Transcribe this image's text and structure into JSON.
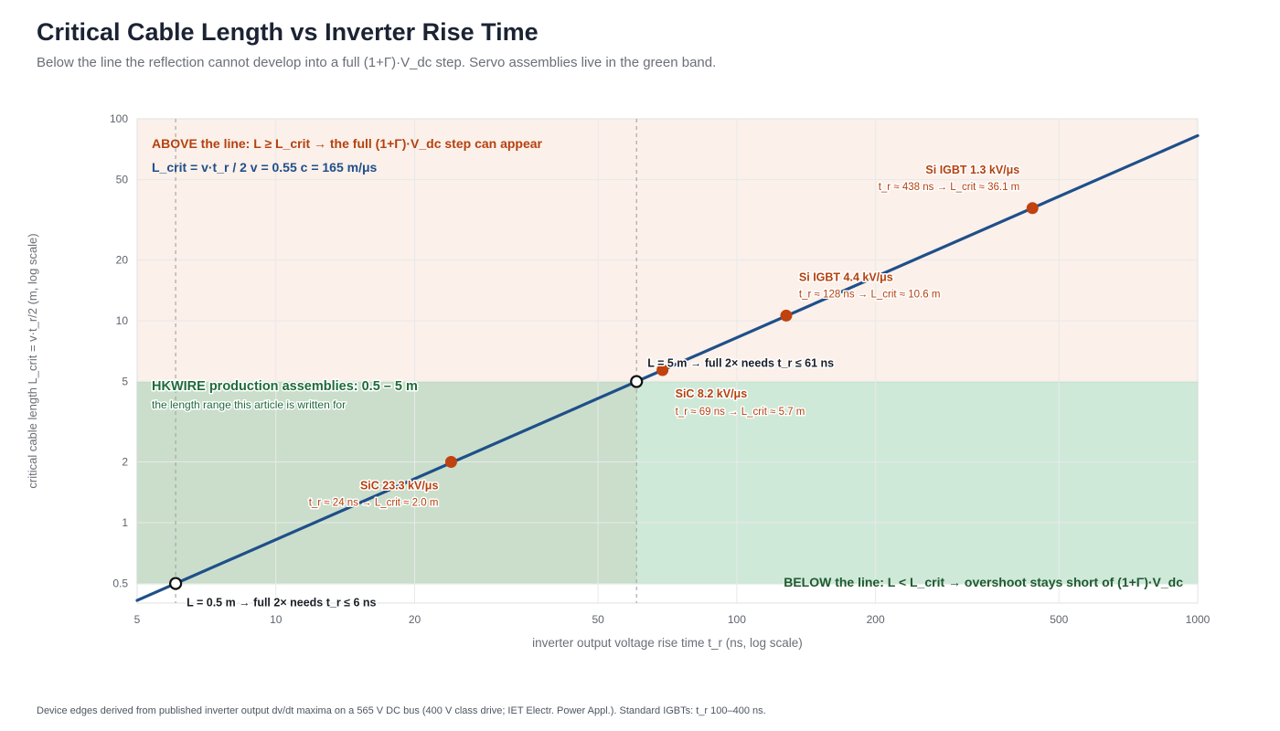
{
  "title": "Critical Cable Length vs Inverter Rise Time",
  "subtitle": "Below the line the reflection cannot develop into a full (1+Γ)·V_dc step. Servo assemblies live in the green band.",
  "footnote": "Device edges derived from published inverter output dv/dt maxima on a 565 V DC bus (400 V class drive; IET Electr. Power Appl.). Standard IGBTs: t_r 100–400 ns.",
  "colors": {
    "line": "#1f4f8a",
    "device_points": "#c0420f",
    "above_region": "#fbf0ea",
    "band_fill": "#cfe9d9",
    "band_stroke": "#7cc496",
    "above_text": "#b5410f",
    "formula_text": "#1f4f8a",
    "band_text": "#1e6b3a",
    "below_text": "#1e5a30"
  },
  "chart_data": {
    "type": "line",
    "xlabel": "inverter output voltage rise time t_r (ns, log scale)",
    "ylabel": "critical cable length L_crit = v·t_r/2 (m, log scale)",
    "xscale": "log",
    "yscale": "log",
    "xlim": [
      5,
      1000
    ],
    "ylim": [
      0.4,
      100
    ],
    "x_ticks": [
      5,
      10,
      20,
      50,
      100,
      200,
      500,
      1000
    ],
    "y_ticks": [
      0.5,
      1,
      2,
      5,
      10,
      20,
      50,
      100
    ],
    "grid": true,
    "series": [
      {
        "x": [
          5,
          1000
        ],
        "values": [
          0.4125,
          82.5
        ]
      }
    ],
    "band": {
      "y_range": [
        0.5,
        5
      ],
      "label": "HKWIRE production assemblies: 0.5 – 5 m",
      "sublabel": "the length range this article is written for"
    },
    "above_note": "ABOVE the line: L ≥ L_crit → the full (1+Γ)·V_dc step can appear",
    "formula_note": "L_crit = v·t_r / 2 v = 0.55 c = 165 m/μs",
    "below_note": "BELOW the line: L < L_crit → overshoot stays short of (1+Γ)·V_dc",
    "thresholds": [
      {
        "x": 6.06,
        "y": 0.5,
        "label": "L = 0.5 m → full 2× needs t_r ≤ 6 ns"
      },
      {
        "x": 60.6,
        "y": 5,
        "label": "L = 5 m → full 2× needs t_r ≤ 61 ns"
      }
    ],
    "devices": [
      {
        "name": "SiC 23.3 kV/μs",
        "x": 24,
        "y": 2.0,
        "detail": "t_r ≈ 24 ns → L_crit ≈ 2.0 m"
      },
      {
        "name": "SiC 8.2 kV/μs",
        "x": 69,
        "y": 5.7,
        "detail": "t_r ≈ 69 ns → L_crit ≈ 5.7 m"
      },
      {
        "name": "Si IGBT 4.4 kV/μs",
        "x": 128,
        "y": 10.6,
        "detail": "t_r ≈ 128 ns → L_crit ≈ 10.6 m"
      },
      {
        "name": "Si IGBT 1.3 kV/μs",
        "x": 438,
        "y": 36.1,
        "detail": "t_r ≈ 438 ns → L_crit ≈ 36.1 m"
      }
    ]
  }
}
